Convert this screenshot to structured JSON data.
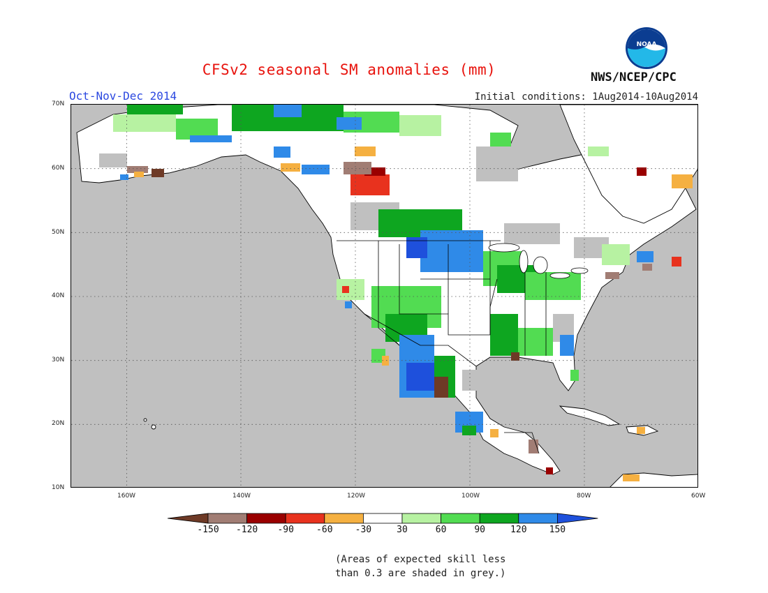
{
  "header": {
    "title": "CFSv2 seasonal SM anomalies (mm)",
    "period": "Oct-Nov-Dec 2014",
    "initial_conditions": "Initial conditions: 1Aug2014-10Aug2014",
    "agency": "NWS/NCEP/CPC",
    "logo_text": "NOAA"
  },
  "map": {
    "lat_labels": [
      "70N",
      "60N",
      "50N",
      "40N",
      "30N",
      "20N",
      "10N"
    ],
    "lon_labels": [
      "160W",
      "140W",
      "120W",
      "100W",
      "80W",
      "60W"
    ],
    "grey_meaning": "skill less than 0.3"
  },
  "colorbar": {
    "labels": [
      "-150",
      "-120",
      "-90",
      "-60",
      "-30",
      "30",
      "60",
      "90",
      "120",
      "150"
    ],
    "colors": [
      "#6e3a26",
      "#a17d74",
      "#9a0000",
      "#e8321e",
      "#f5b041",
      "#ffffff",
      "#b7f2a2",
      "#52dc52",
      "#0ea620",
      "#2f8ae8",
      "#1e50dc"
    ]
  },
  "footnote": {
    "line1": "(Areas of expected skill less",
    "line2": "than 0.3 are shaded in grey.)"
  }
}
